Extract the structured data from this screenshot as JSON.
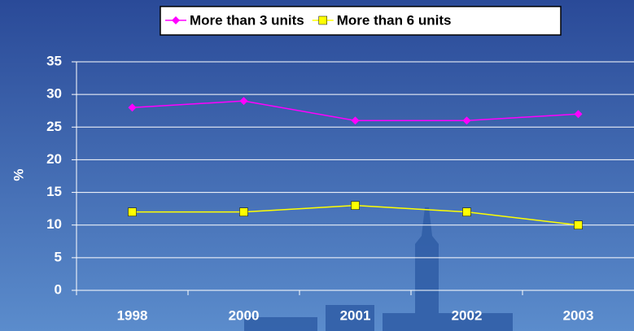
{
  "chart_data": {
    "type": "line",
    "y_label": "%",
    "categories": [
      "1998",
      "2000",
      "2001",
      "2002",
      "2003"
    ],
    "series": [
      {
        "name": "More than 3 units",
        "color": "#ff00ff",
        "marker": "diamond",
        "values": [
          28,
          29,
          26,
          26,
          27
        ]
      },
      {
        "name": "More than 6 units",
        "color": "#ffff00",
        "marker": "square",
        "values": [
          12,
          12,
          13,
          12,
          10
        ]
      }
    ],
    "ylim": [
      0,
      35
    ],
    "yticks": [
      0,
      5,
      10,
      15,
      20,
      25,
      30,
      35
    ],
    "grid": true,
    "legend": "top"
  }
}
